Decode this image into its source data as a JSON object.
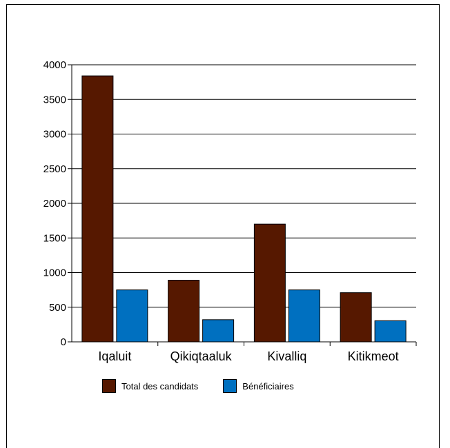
{
  "chart_data": {
    "type": "bar",
    "title": "",
    "xlabel": "",
    "ylabel": "",
    "categories": [
      "Iqaluit",
      "Qikiqtaaluk",
      "Kivalliq",
      "Kitikmeot"
    ],
    "series": [
      {
        "name": "Total des candidats",
        "values": [
          3840,
          890,
          1700,
          710
        ],
        "color": "#561800"
      },
      {
        "name": "Bénéficiaires",
        "values": [
          750,
          320,
          750,
          305
        ],
        "color": "#0070c0"
      }
    ],
    "ylim": [
      0,
      4000
    ],
    "yticks": [
      0,
      500,
      1000,
      1500,
      2000,
      2500,
      3000,
      3500,
      4000
    ],
    "grid": true,
    "legend_position": "bottom"
  }
}
